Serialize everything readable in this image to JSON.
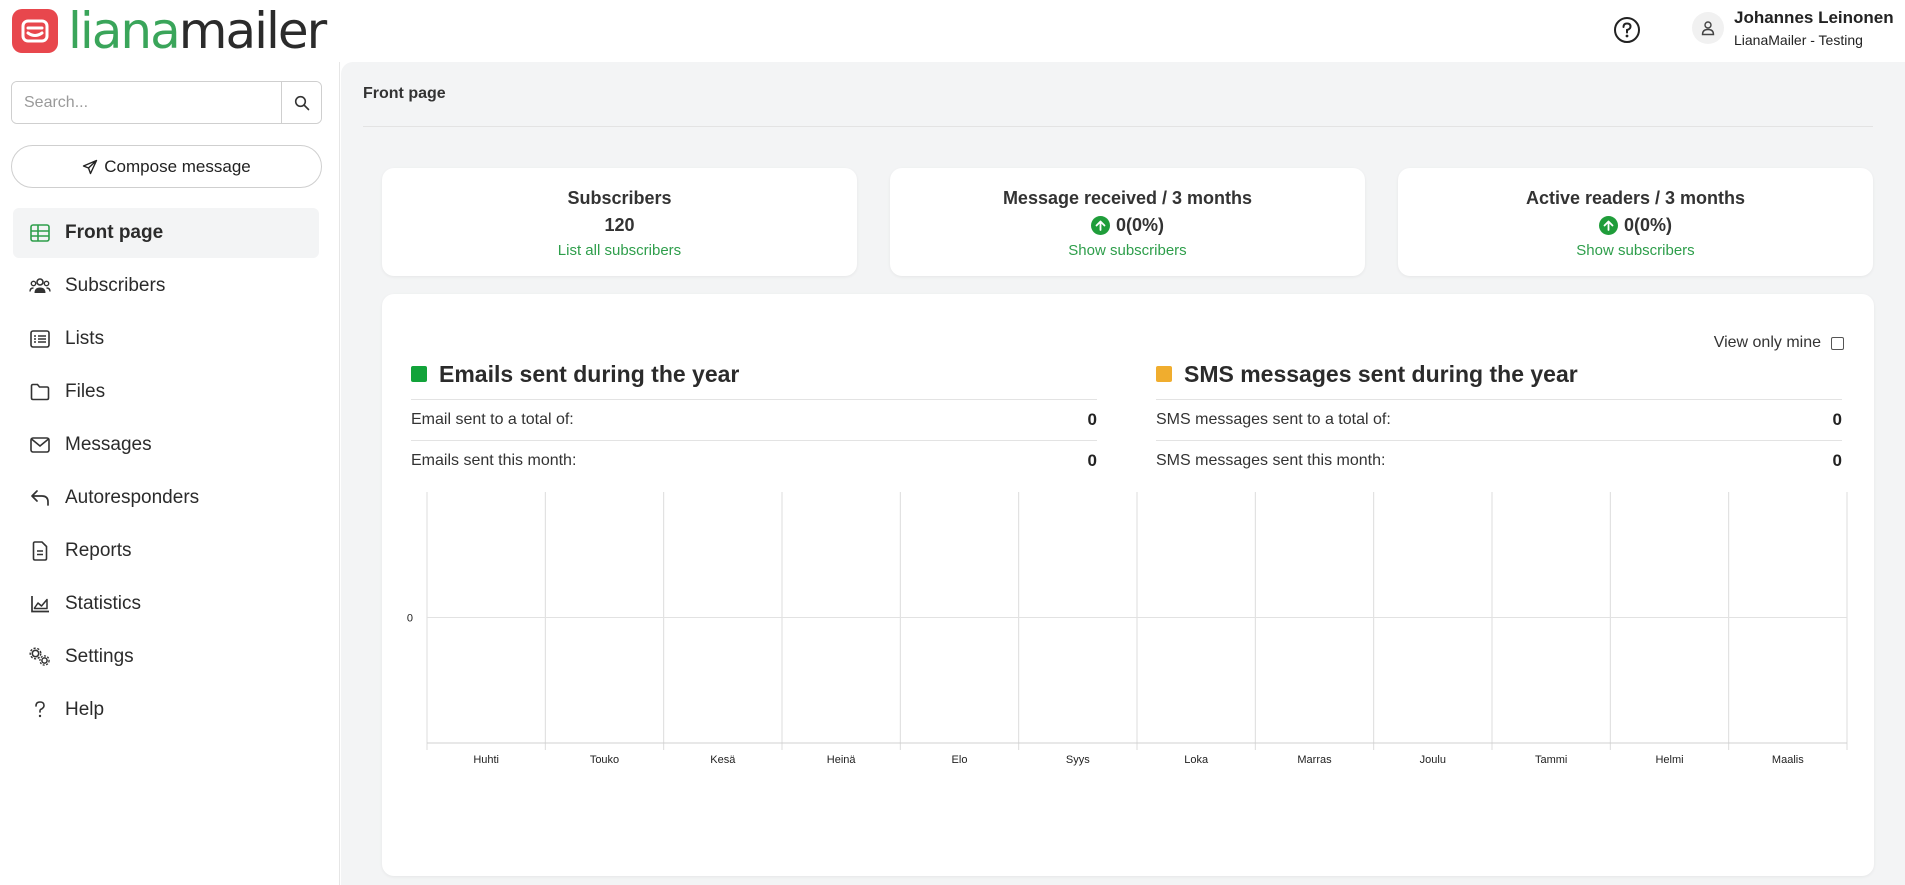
{
  "app": {
    "logo_left": "liana",
    "logo_right": "mailer"
  },
  "header": {
    "user_name": "Johannes Leinonen",
    "user_org": "LianaMailer - Testing"
  },
  "sidebar": {
    "search_placeholder": "Search...",
    "compose_label": "Compose message",
    "items": [
      {
        "label": "Front page",
        "icon": "grid-icon"
      },
      {
        "label": "Subscribers",
        "icon": "users-icon"
      },
      {
        "label": "Lists",
        "icon": "list-icon"
      },
      {
        "label": "Files",
        "icon": "folder-icon"
      },
      {
        "label": "Messages",
        "icon": "envelope-icon"
      },
      {
        "label": "Autoresponders",
        "icon": "reply-icon"
      },
      {
        "label": "Reports",
        "icon": "document-icon"
      },
      {
        "label": "Statistics",
        "icon": "chart-icon"
      },
      {
        "label": "Settings",
        "icon": "gears-icon"
      },
      {
        "label": "Help",
        "icon": "question-icon"
      }
    ]
  },
  "main": {
    "breadcrumb": "Front page",
    "stats": [
      {
        "title": "Subscribers",
        "value": "120",
        "link": "List all subscribers"
      },
      {
        "title": "Message received / 3 months",
        "value": "0(0%)",
        "link": "Show subscribers"
      },
      {
        "title": "Active readers / 3 months",
        "value": "0(0%)",
        "link": "Show subscribers"
      }
    ],
    "view_only_mine": "View only mine",
    "emails": {
      "title": "Emails sent during the year",
      "total_label": "Email sent to a total of:",
      "total_value": "0",
      "month_label": "Emails sent this month:",
      "month_value": "0"
    },
    "sms": {
      "title": "SMS messages sent during the year",
      "total_label": "SMS messages sent to a total of:",
      "total_value": "0",
      "month_label": "SMS messages sent this month:",
      "month_value": "0"
    }
  },
  "colors": {
    "accent_green": "#2e9e4b",
    "email_series": "#12a33a",
    "sms_series": "#f0ad2e",
    "logo_red": "#e8474d"
  },
  "chart_data": {
    "type": "bar",
    "categories": [
      "Huhti",
      "Touko",
      "Kesä",
      "Heinä",
      "Elo",
      "Syys",
      "Loka",
      "Marras",
      "Joulu",
      "Tammi",
      "Helmi",
      "Maalis"
    ],
    "series": [
      {
        "name": "Emails sent during the year",
        "values": [
          0,
          0,
          0,
          0,
          0,
          0,
          0,
          0,
          0,
          0,
          0,
          0
        ]
      },
      {
        "name": "SMS messages sent during the year",
        "values": [
          0,
          0,
          0,
          0,
          0,
          0,
          0,
          0,
          0,
          0,
          0,
          0
        ]
      }
    ],
    "y_ticks": [
      "0"
    ],
    "grid": true
  }
}
